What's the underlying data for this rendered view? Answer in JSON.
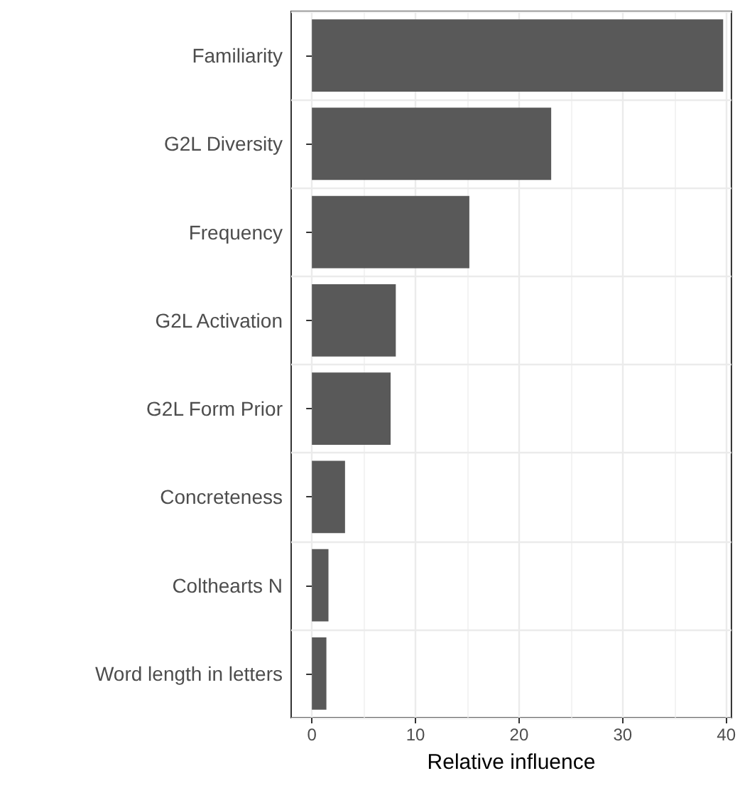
{
  "chart_data": {
    "type": "bar",
    "orientation": "horizontal",
    "xlabel": "Relative influence",
    "categories": [
      "Familiarity",
      "G2L Diversity",
      "Frequency",
      "G2L Activation",
      "G2L Form Prior",
      "Concreteness",
      "Colthearts N",
      "Word length in letters"
    ],
    "values": [
      39.7,
      23.1,
      15.2,
      8.1,
      7.6,
      3.2,
      1.6,
      1.4
    ],
    "color": "#595959",
    "xlim": [
      -2,
      40.5
    ],
    "xticks": [
      0,
      10,
      20,
      30,
      40
    ],
    "grid": true
  }
}
